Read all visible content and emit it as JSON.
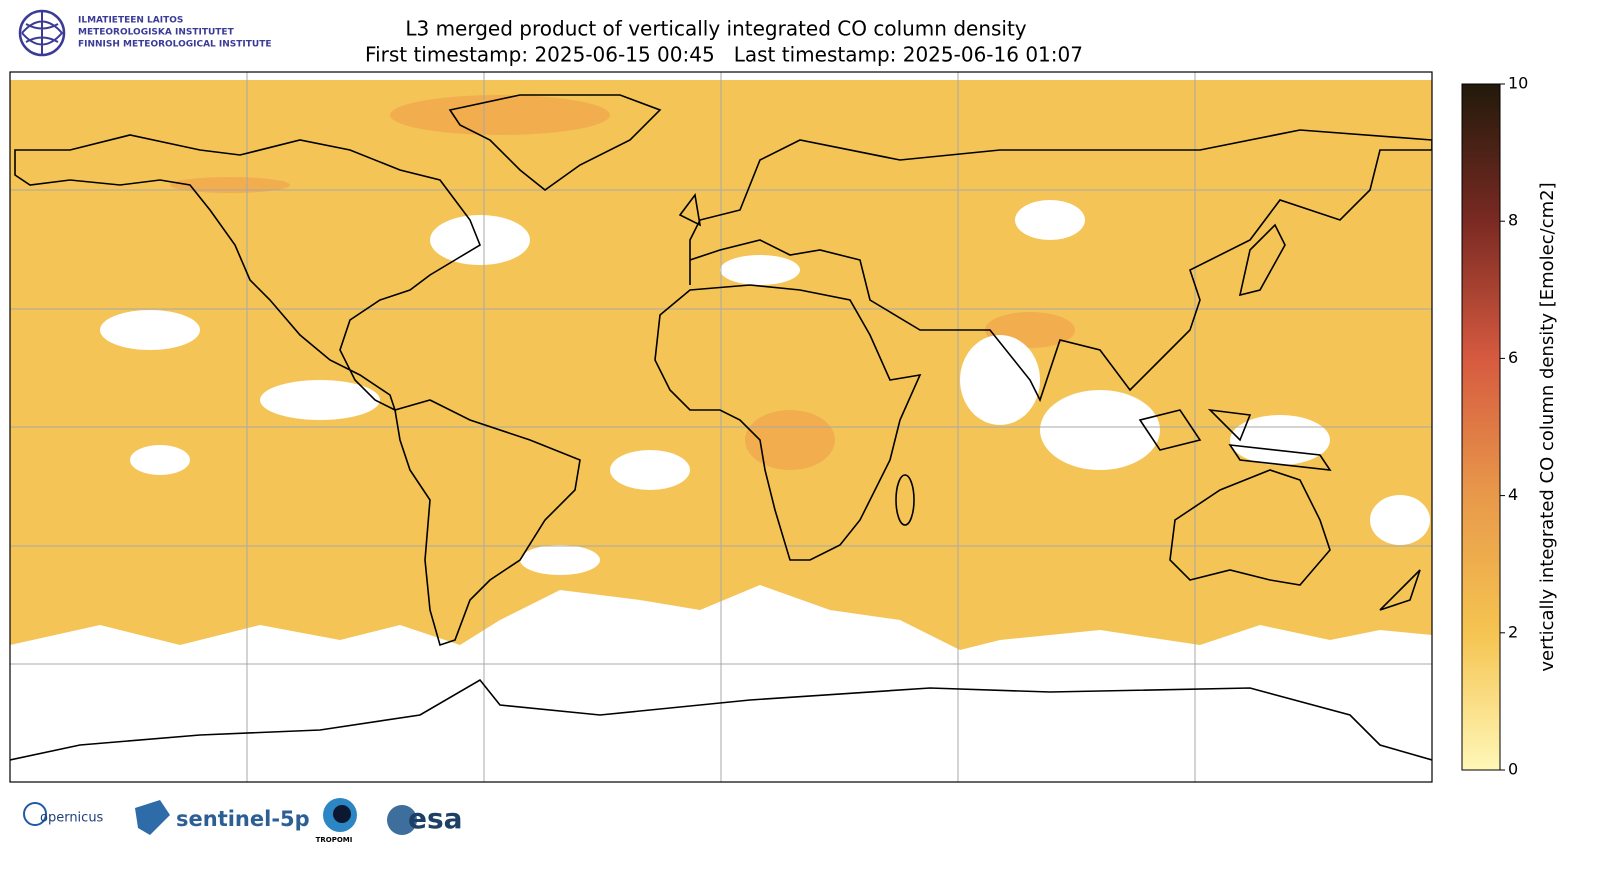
{
  "header": {
    "logo_lines": [
      "ILMATIETEEN LAITOS",
      "METEOROLOGISKA INSTITUTET",
      "FINNISH METEOROLOGICAL INSTITUTE"
    ],
    "title": "L3 merged product of vertically integrated CO column density",
    "subtitle": "First timestamp: 2025-06-15 00:45   Last timestamp: 2025-06-16 01:07"
  },
  "colorbar": {
    "label": "vertically integrated CO column density [Emolec/cm2]",
    "lim": [
      0,
      10
    ],
    "ticks": [
      0,
      2,
      4,
      6,
      8,
      10
    ],
    "colors": [
      "#fff7b8",
      "#f5c451",
      "#e8994a",
      "#d65a40",
      "#7a2a22",
      "#211a0b"
    ]
  },
  "footer": {
    "logos": [
      "opernicus",
      "sentinel-5p",
      "TROPOMI",
      "esa"
    ]
  }
}
